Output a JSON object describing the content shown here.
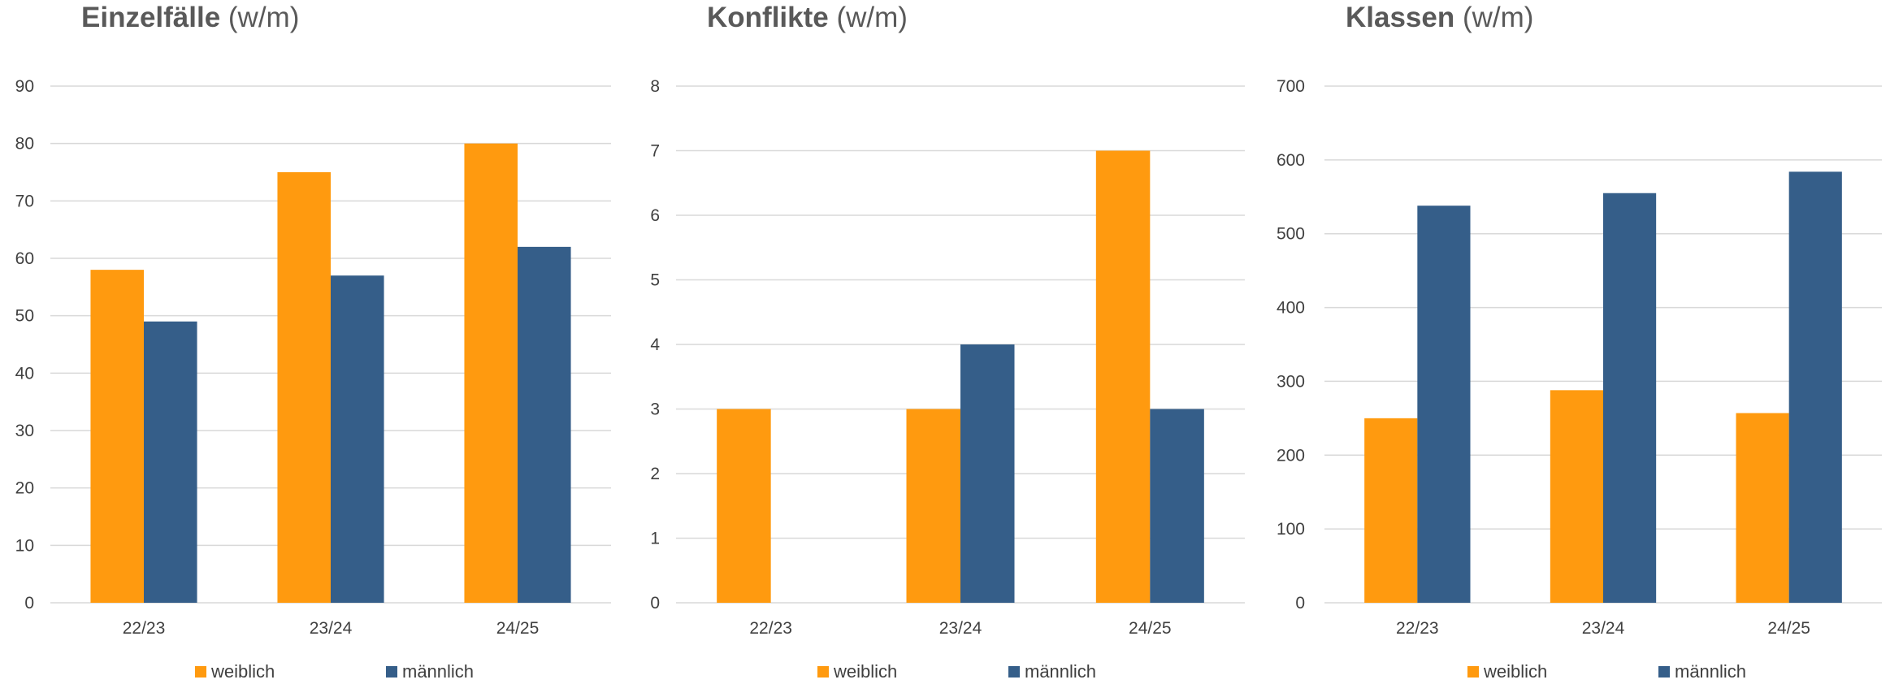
{
  "colors": {
    "weiblich": "#FF9A0F",
    "maennlich": "#355E89",
    "grid": "#d9d9d9",
    "title": "#595959",
    "text": "#404040"
  },
  "chart_data": [
    {
      "type": "bar",
      "title_bold": "Einzelfälle",
      "title_rest": " (w/m)",
      "categories": [
        "22/23",
        "23/24",
        "24/25"
      ],
      "series": [
        {
          "name": "weiblich",
          "values": [
            58,
            75,
            80
          ]
        },
        {
          "name": "männlich",
          "values": [
            49,
            57,
            62
          ]
        }
      ],
      "ylim": [
        0,
        90
      ],
      "yticks": [
        "0",
        "10",
        "20",
        "30",
        "40",
        "50",
        "60",
        "70",
        "80",
        "90"
      ],
      "grid": true,
      "legend": "bottom"
    },
    {
      "type": "bar",
      "title_bold": "Konflikte",
      "title_rest": " (w/m)",
      "categories": [
        "22/23",
        "23/24",
        "24/25"
      ],
      "series": [
        {
          "name": "weiblich",
          "values": [
            3,
            3,
            7
          ]
        },
        {
          "name": "männlich",
          "values": [
            0,
            4,
            3
          ]
        }
      ],
      "ylim": [
        0,
        8
      ],
      "yticks": [
        "0",
        "1",
        "2",
        "3",
        "4",
        "5",
        "6",
        "7",
        "8"
      ],
      "grid": true,
      "legend": "bottom"
    },
    {
      "type": "bar",
      "title_bold": "Klassen",
      "title_rest": " (w/m)",
      "categories": [
        "22/23",
        "23/24",
        "24/25"
      ],
      "series": [
        {
          "name": "weiblich",
          "values": [
            250,
            288,
            257
          ]
        },
        {
          "name": "männlich",
          "values": [
            538,
            555,
            584
          ]
        }
      ],
      "ylim": [
        0,
        700
      ],
      "yticks": [
        "0",
        "100",
        "200",
        "300",
        "400",
        "500",
        "600",
        "700"
      ],
      "grid": true,
      "legend": "bottom"
    }
  ]
}
